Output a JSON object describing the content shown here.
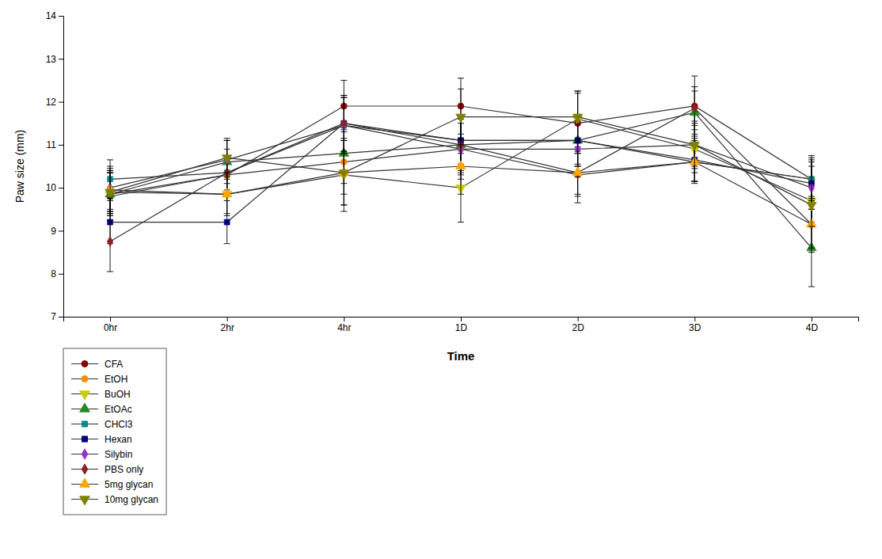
{
  "chart_data": {
    "type": "line",
    "categories": [
      "0hr",
      "2hr",
      "4hr",
      "1D",
      "2D",
      "3D",
      "4D"
    ],
    "color": "#333333",
    "series": [
      {
        "name": "CFA",
        "color": "#8B0000",
        "marker": "circle",
        "values": [
          9.8,
          10.3,
          11.9,
          11.9,
          11.5,
          11.9,
          10.2
        ],
        "errors": [
          0.55,
          0.45,
          0.6,
          0.65,
          0.7,
          0.7,
          0.55
        ]
      },
      {
        "name": "EtOH",
        "color": "#FF8C00",
        "marker": "circle",
        "values": [
          9.85,
          10.3,
          10.6,
          10.9,
          10.3,
          10.6,
          10.2
        ],
        "errors": [
          0.5,
          0.4,
          0.75,
          0.7,
          0.5,
          0.45,
          0.5
        ]
      },
      {
        "name": "BuOH",
        "color": "#CCCC00",
        "marker": "triangle-down",
        "values": [
          9.9,
          9.85,
          10.3,
          10.0,
          11.6,
          10.9,
          9.7
        ],
        "errors": [
          0.5,
          0.45,
          0.85,
          0.8,
          0.65,
          0.55,
          0.5
        ]
      },
      {
        "name": "EtOAc",
        "color": "#228B22",
        "marker": "triangle-up",
        "values": [
          9.85,
          10.6,
          10.8,
          11.0,
          11.1,
          11.75,
          8.6
        ],
        "errors": [
          0.5,
          0.5,
          0.7,
          0.65,
          0.6,
          0.5,
          0.9
        ]
      },
      {
        "name": "CHCl3",
        "color": "#008B8B",
        "marker": "square",
        "values": [
          10.2,
          10.35,
          11.45,
          11.1,
          11.1,
          10.6,
          10.2
        ],
        "errors": [
          0.45,
          0.4,
          0.65,
          0.55,
          0.55,
          0.45,
          0.45
        ]
      },
      {
        "name": "Hexan",
        "color": "#000080",
        "marker": "square",
        "values": [
          9.2,
          9.2,
          11.5,
          11.1,
          11.1,
          10.65,
          10.1
        ],
        "errors": [
          0.5,
          0.5,
          0.65,
          0.6,
          0.6,
          0.5,
          0.5
        ]
      },
      {
        "name": "Silybin",
        "color": "#9932CC",
        "marker": "diamond",
        "values": [
          10.0,
          10.65,
          11.45,
          10.9,
          10.9,
          11.0,
          10.0
        ],
        "errors": [
          0.5,
          0.45,
          0.65,
          0.6,
          0.65,
          0.5,
          0.5
        ]
      },
      {
        "name": "PBS only",
        "color": "#8B2222",
        "marker": "diamond",
        "values": [
          8.75,
          10.35,
          11.5,
          11.0,
          10.35,
          11.85,
          9.15
        ],
        "errors": [
          0.7,
          0.55,
          0.65,
          0.6,
          0.5,
          0.5,
          0.65
        ]
      },
      {
        "name": "5mg glycan",
        "color": "#FFA500",
        "marker": "triangle-up",
        "values": [
          9.95,
          9.85,
          10.35,
          10.5,
          10.35,
          10.6,
          9.15
        ],
        "errors": [
          0.5,
          0.5,
          0.75,
          0.65,
          0.7,
          0.5,
          0.55
        ]
      },
      {
        "name": "10mg glycan",
        "color": "#808000",
        "marker": "triangle-down",
        "values": [
          9.9,
          10.7,
          10.35,
          11.65,
          11.65,
          11.0,
          9.6
        ],
        "errors": [
          0.5,
          0.45,
          0.75,
          0.65,
          0.6,
          0.55,
          0.5
        ]
      }
    ],
    "ylabel": "Paw size (mm)",
    "xlabel": "Time",
    "ylim": [
      7,
      14
    ],
    "yticks": [
      7,
      8,
      9,
      10,
      11,
      12,
      13,
      14
    ],
    "grid": false,
    "legend": "lower left"
  }
}
